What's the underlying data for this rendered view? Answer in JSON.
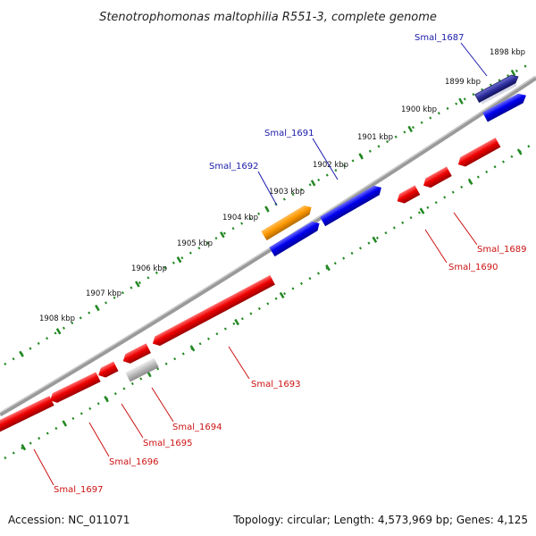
{
  "title": "Stenotrophomonas maltophilia R551-3, complete genome",
  "footer": {
    "accession": "Accession: NC_011071",
    "summary": "Topology: circular; Length: 4,573,969 bp; Genes: 4,125"
  },
  "colors": {
    "forward": "#0000ee",
    "reverse": "#ee0000",
    "highlight": "#ff9900",
    "pseudo": "#bbbbbb",
    "selected": "#5050b0",
    "backbone": "#808080",
    "ticks": "#228822",
    "label_forward": "#1a1aaa",
    "label_reverse": "#cc1111"
  },
  "scale_labels": [
    "1898 kbp",
    "1899 kbp",
    "1900 kbp",
    "1901 kbp",
    "1902 kbp",
    "1903 kbp",
    "1904 kbp",
    "1905 kbp",
    "1906 kbp",
    "1907 kbp",
    "1908 kbp"
  ],
  "gene_labels": [
    {
      "name": "Smal_1687",
      "strand": "forward"
    },
    {
      "name": "Smal_1691",
      "strand": "forward"
    },
    {
      "name": "Smal_1692",
      "strand": "forward"
    },
    {
      "name": "Smal_1689",
      "strand": "reverse"
    },
    {
      "name": "Smal_1690",
      "strand": "reverse"
    },
    {
      "name": "Smal_1693",
      "strand": "reverse"
    },
    {
      "name": "Smal_1694",
      "strand": "reverse"
    },
    {
      "name": "Smal_1695",
      "strand": "reverse"
    },
    {
      "name": "Smal_1696",
      "strand": "reverse"
    },
    {
      "name": "Smal_1697",
      "strand": "reverse"
    }
  ]
}
